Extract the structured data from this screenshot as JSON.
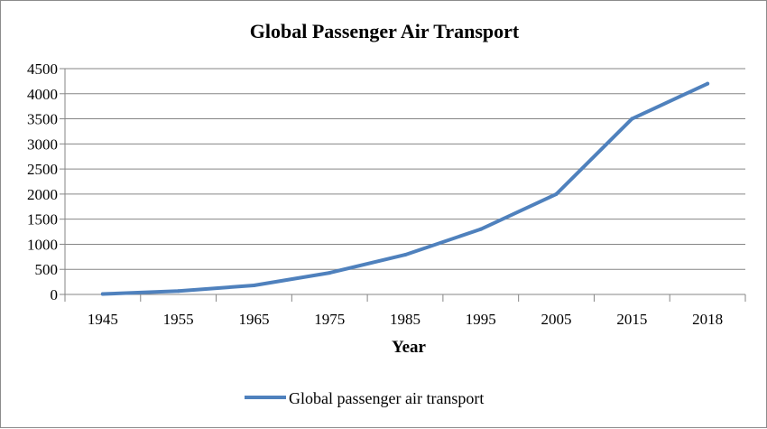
{
  "chart_data": {
    "type": "line",
    "title": "Global Passenger Air Transport",
    "xlabel": "Year",
    "ylabel": "",
    "categories": [
      "1945",
      "1955",
      "1965",
      "1975",
      "1985",
      "1995",
      "2005",
      "2015",
      "2018"
    ],
    "series": [
      {
        "name": "Global passenger air transport",
        "values": [
          9,
          68,
          180,
          430,
          790,
          1300,
          2000,
          3500,
          4200
        ],
        "color": "#4f81bd"
      }
    ],
    "ylim": [
      0,
      4500
    ],
    "yticks": [
      0,
      500,
      1000,
      1500,
      2000,
      2500,
      3000,
      3500,
      4000,
      4500
    ],
    "grid": "horizontal",
    "legend": "bottom"
  }
}
